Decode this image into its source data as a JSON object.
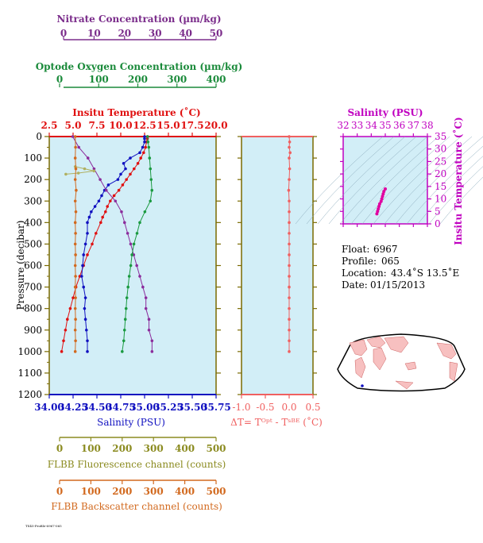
{
  "chart_data": [
    {
      "type": "line",
      "axes": {
        "top_nitrate": {
          "label": "Nitrate Concentration (µm/kg)",
          "ticks": [
            "0",
            "10",
            "20",
            "30",
            "40",
            "50"
          ],
          "range": [
            0,
            50
          ],
          "color": "#7b2d8b"
        },
        "top_oxygen": {
          "label": "Optode Oxygen Concentration (µm/kg)",
          "ticks": [
            "0",
            "100",
            "200",
            "300",
            "400"
          ],
          "range": [
            0,
            400
          ],
          "color": "#1a8a3a"
        },
        "top_temperature": {
          "label": "Insitu Temperature (˚C)",
          "ticks": [
            "2.5",
            "5.0",
            "7.5",
            "10.0",
            "12.5",
            "15.0",
            "17.5",
            "20.0"
          ],
          "range": [
            2.5,
            20
          ],
          "color": "#e01010"
        },
        "left_pressure": {
          "label": "Pressure (decibar)",
          "ticks": [
            "0",
            "100",
            "200",
            "300",
            "400",
            "500",
            "600",
            "700",
            "800",
            "900",
            "1000",
            "1100",
            "1200"
          ],
          "range": [
            0,
            1200
          ]
        },
        "bottom_salinity": {
          "label": "Salinity (PSU)",
          "ticks": [
            "34.00",
            "34.25",
            "34.50",
            "34.75",
            "35.00",
            "35.25",
            "35.50",
            "35.75"
          ],
          "range": [
            34.0,
            35.75
          ],
          "color": "#1010c0"
        },
        "bottom_fluorescence": {
          "label": "FLBB Fluorescence channel (counts)",
          "ticks": [
            "0",
            "100",
            "200",
            "300",
            "400",
            "500"
          ],
          "range": [
            0,
            500
          ],
          "color": "#8b8b20"
        },
        "bottom_backscatter": {
          "label": "FLBB Backscatter channel (counts)",
          "ticks": [
            "0",
            "100",
            "200",
            "300",
            "400",
            "500"
          ],
          "range": [
            0,
            500
          ],
          "color": "#d2691e"
        }
      },
      "series": [
        {
          "name": "Temperature",
          "axis": "top_temperature",
          "color": "#e01010",
          "points": [
            [
              12.8,
              0
            ],
            [
              12.8,
              10
            ],
            [
              12.7,
              25
            ],
            [
              12.6,
              50
            ],
            [
              12.4,
              75
            ],
            [
              12.1,
              100
            ],
            [
              11.8,
              125
            ],
            [
              11.4,
              150
            ],
            [
              11.0,
              175
            ],
            [
              10.6,
              200
            ],
            [
              10.2,
              225
            ],
            [
              9.8,
              250
            ],
            [
              9.3,
              275
            ],
            [
              8.9,
              300
            ],
            [
              8.6,
              325
            ],
            [
              8.4,
              350
            ],
            [
              8.1,
              375
            ],
            [
              7.9,
              400
            ],
            [
              7.4,
              450
            ],
            [
              7.0,
              500
            ],
            [
              6.5,
              550
            ],
            [
              6.1,
              600
            ],
            [
              5.7,
              650
            ],
            [
              5.3,
              700
            ],
            [
              5.0,
              750
            ],
            [
              4.7,
              800
            ],
            [
              4.4,
              850
            ],
            [
              4.2,
              900
            ],
            [
              4.0,
              950
            ],
            [
              3.8,
              1000
            ]
          ]
        },
        {
          "name": "Salinity",
          "axis": "bottom_salinity",
          "color": "#1010c0",
          "points": [
            [
              35.0,
              0
            ],
            [
              35.0,
              10
            ],
            [
              35.0,
              25
            ],
            [
              34.98,
              50
            ],
            [
              34.95,
              75
            ],
            [
              34.85,
              100
            ],
            [
              34.78,
              125
            ],
            [
              34.8,
              150
            ],
            [
              34.75,
              175
            ],
            [
              34.72,
              200
            ],
            [
              34.62,
              225
            ],
            [
              34.58,
              250
            ],
            [
              34.55,
              275
            ],
            [
              34.52,
              300
            ],
            [
              34.48,
              325
            ],
            [
              34.44,
              350
            ],
            [
              34.42,
              375
            ],
            [
              34.4,
              400
            ],
            [
              34.4,
              450
            ],
            [
              34.38,
              500
            ],
            [
              34.36,
              550
            ],
            [
              34.35,
              600
            ],
            [
              34.34,
              650
            ],
            [
              34.36,
              700
            ],
            [
              34.38,
              750
            ],
            [
              34.37,
              800
            ],
            [
              34.38,
              850
            ],
            [
              34.39,
              900
            ],
            [
              34.4,
              950
            ],
            [
              34.4,
              1000
            ]
          ]
        },
        {
          "name": "Nitrate",
          "axis": "top_nitrate",
          "color": "#8b2c9c",
          "points": [
            [
              3,
              0
            ],
            [
              5,
              50
            ],
            [
              8,
              100
            ],
            [
              10,
              150
            ],
            [
              12,
              200
            ],
            [
              14,
              250
            ],
            [
              17,
              300
            ],
            [
              19,
              350
            ],
            [
              20,
              400
            ],
            [
              21,
              450
            ],
            [
              22,
              500
            ],
            [
              23,
              550
            ],
            [
              24,
              600
            ],
            [
              25,
              650
            ],
            [
              26,
              700
            ],
            [
              27,
              750
            ],
            [
              27,
              800
            ],
            [
              28,
              850
            ],
            [
              28,
              900
            ],
            [
              29,
              950
            ],
            [
              29,
              1000
            ]
          ]
        },
        {
          "name": "Oxygen",
          "axis": "top_oxygen",
          "color": "#1a9a40",
          "points": [
            [
              225,
              0
            ],
            [
              226,
              25
            ],
            [
              228,
              50
            ],
            [
              230,
              100
            ],
            [
              232,
              150
            ],
            [
              234,
              200
            ],
            [
              236,
              250
            ],
            [
              232,
              300
            ],
            [
              218,
              350
            ],
            [
              205,
              400
            ],
            [
              198,
              450
            ],
            [
              190,
              500
            ],
            [
              185,
              550
            ],
            [
              182,
              600
            ],
            [
              178,
              650
            ],
            [
              175,
              700
            ],
            [
              172,
              750
            ],
            [
              170,
              800
            ],
            [
              168,
              850
            ],
            [
              166,
              900
            ],
            [
              164,
              950
            ],
            [
              160,
              1000
            ]
          ]
        },
        {
          "name": "Fluorescence",
          "axis": "bottom_fluorescence",
          "color": "#b0b060",
          "points": [
            [
              50,
              140
            ],
            [
              80,
              150
            ],
            [
              110,
              160
            ],
            [
              60,
              170
            ],
            [
              20,
              175
            ]
          ]
        },
        {
          "name": "Backscatter",
          "axis": "bottom_backscatter",
          "color": "#d2691e",
          "points": [
            [
              50,
              0
            ],
            [
              51,
              50
            ],
            [
              50,
              100
            ],
            [
              52,
              150
            ],
            [
              50,
              200
            ],
            [
              53,
              250
            ],
            [
              50,
              300
            ],
            [
              52,
              350
            ],
            [
              50,
              400
            ],
            [
              51,
              450
            ],
            [
              50,
              500
            ],
            [
              51,
              550
            ],
            [
              50,
              600
            ],
            [
              51,
              650
            ],
            [
              50,
              700
            ],
            [
              51,
              750
            ],
            [
              50,
              800
            ],
            [
              51,
              850
            ],
            [
              50,
              900
            ],
            [
              51,
              950
            ],
            [
              50,
              1000
            ]
          ]
        }
      ]
    },
    {
      "type": "scatter",
      "xaxis": {
        "label": "ΔT= Tᴼᵖᵗ - Tˢᴮᴱ (˚C)",
        "ticks": [
          "-1.0",
          "-0.5",
          "0.0",
          "0.5"
        ],
        "range": [
          -1.0,
          0.5
        ]
      },
      "yaxis": {
        "range": [
          0,
          1200
        ]
      },
      "color": "#f06060",
      "points": [
        [
          0,
          0
        ],
        [
          0.01,
          25
        ],
        [
          0.0,
          50
        ],
        [
          0.02,
          75
        ],
        [
          0.0,
          100
        ],
        [
          0.01,
          150
        ],
        [
          0.0,
          200
        ],
        [
          -0.01,
          250
        ],
        [
          0.0,
          300
        ],
        [
          0.0,
          350
        ],
        [
          0.0,
          400
        ],
        [
          0.0,
          450
        ],
        [
          0.0,
          500
        ],
        [
          0.0,
          550
        ],
        [
          0.0,
          600
        ],
        [
          0.0,
          650
        ],
        [
          0.0,
          700
        ],
        [
          0.0,
          750
        ],
        [
          0.0,
          800
        ],
        [
          0.0,
          850
        ],
        [
          0.0,
          900
        ],
        [
          0.0,
          950
        ],
        [
          0.0,
          1000
        ]
      ]
    },
    {
      "type": "scatter",
      "xaxis": {
        "label": "Salinity (PSU)",
        "ticks": [
          "32",
          "33",
          "34",
          "35",
          "36",
          "37",
          "38"
        ],
        "range": [
          32,
          38
        ]
      },
      "yaxis": {
        "label": "Insitu Temperature (˚C)",
        "ticks": [
          "0",
          "5",
          "10",
          "15",
          "20",
          "25",
          "30",
          "35"
        ],
        "range": [
          0,
          35
        ]
      },
      "color": "#e000a0",
      "points": [
        [
          34.4,
          4
        ],
        [
          34.45,
          5
        ],
        [
          34.5,
          6
        ],
        [
          34.55,
          7
        ],
        [
          34.6,
          8
        ],
        [
          34.7,
          9
        ],
        [
          34.75,
          10
        ],
        [
          34.8,
          11
        ],
        [
          34.85,
          12
        ],
        [
          34.9,
          13
        ],
        [
          35.0,
          14
        ]
      ]
    }
  ],
  "info": {
    "float_label": "Float:",
    "float_value": "6967",
    "profile_label": "Profile:",
    "profile_value": "065",
    "location_label": "Location:",
    "location_value": "43.4˚S  13.5˚E",
    "date_label": "Date:",
    "date_value": "01/15/2013"
  },
  "footer_text": "TS45-Profile-6967-065",
  "colors": {
    "panel_fill": "#d2eef7",
    "grid_frame": "#7a6a00"
  }
}
